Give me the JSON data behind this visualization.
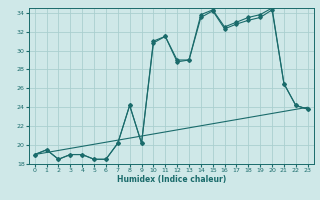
{
  "xlabel": "Humidex (Indice chaleur)",
  "bg_color": "#cfe8e8",
  "line_color": "#1a6b6b",
  "grid_color": "#aacfcf",
  "xlim": [
    -0.5,
    23.5
  ],
  "ylim": [
    18,
    34.5
  ],
  "xticks": [
    0,
    1,
    2,
    3,
    4,
    5,
    6,
    7,
    8,
    9,
    10,
    11,
    12,
    13,
    14,
    15,
    16,
    17,
    18,
    19,
    20,
    21,
    22,
    23
  ],
  "yticks": [
    18,
    20,
    22,
    24,
    26,
    28,
    30,
    32,
    34
  ],
  "line1_x": [
    0,
    1,
    2,
    3,
    4,
    5,
    6,
    7,
    8,
    9,
    10,
    11,
    12,
    13,
    14,
    15,
    16,
    17,
    18,
    19,
    20,
    21,
    22,
    23
  ],
  "line1_y": [
    19.0,
    19.5,
    18.5,
    19.0,
    19.0,
    18.5,
    18.5,
    20.2,
    24.2,
    20.2,
    30.8,
    31.5,
    28.8,
    29.0,
    33.5,
    34.2,
    32.3,
    32.8,
    33.2,
    33.5,
    34.3,
    26.5,
    24.2,
    23.8
  ],
  "line2_x": [
    0,
    1,
    2,
    3,
    4,
    5,
    6,
    7,
    8,
    9,
    10,
    11,
    12,
    13,
    14,
    15,
    16,
    17,
    18,
    19,
    20,
    21,
    22,
    23
  ],
  "line2_y": [
    19.0,
    19.5,
    18.5,
    19.0,
    19.0,
    18.5,
    18.5,
    20.2,
    24.2,
    20.2,
    31.0,
    31.5,
    29.0,
    29.0,
    33.8,
    34.3,
    32.5,
    33.0,
    33.5,
    33.8,
    34.5,
    26.5,
    24.2,
    23.8
  ],
  "line3_x": [
    0,
    23
  ],
  "line3_y": [
    19.0,
    24.0
  ]
}
